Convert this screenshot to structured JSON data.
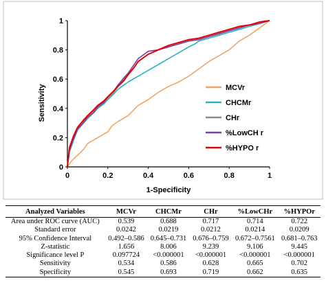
{
  "chart_data": {
    "type": "line",
    "xlabel": "1-Specificity",
    "ylabel": "Sensitivity",
    "xlim": [
      0,
      1
    ],
    "ylim": [
      0,
      1
    ],
    "xticks": [
      "0",
      "0.2",
      "0.4",
      "0.6",
      "0.8",
      "1"
    ],
    "yticks": [
      "0",
      "0.2",
      "0.4",
      "0.6",
      "0.8",
      "1"
    ],
    "grid": false,
    "legend_position": "bottom-right",
    "series": [
      {
        "name": "MCVr",
        "color": "#f4a460",
        "x": [
          0,
          0.02,
          0.05,
          0.08,
          0.1,
          0.15,
          0.2,
          0.22,
          0.25,
          0.3,
          0.35,
          0.4,
          0.45,
          0.5,
          0.55,
          0.6,
          0.65,
          0.7,
          0.75,
          0.8,
          0.85,
          0.9,
          0.95,
          1
        ],
        "y": [
          0,
          0.04,
          0.08,
          0.12,
          0.16,
          0.2,
          0.24,
          0.28,
          0.31,
          0.35,
          0.42,
          0.46,
          0.51,
          0.55,
          0.58,
          0.62,
          0.67,
          0.72,
          0.76,
          0.8,
          0.86,
          0.9,
          0.95,
          1
        ]
      },
      {
        "name": "CHCMr",
        "color": "#2ab0c8",
        "x": [
          0,
          0.01,
          0.03,
          0.05,
          0.08,
          0.1,
          0.13,
          0.15,
          0.18,
          0.2,
          0.23,
          0.25,
          0.28,
          0.3,
          0.35,
          0.4,
          0.45,
          0.5,
          0.55,
          0.6,
          0.63,
          0.65,
          0.7,
          0.75,
          0.8,
          0.85,
          0.9,
          0.95,
          1
        ],
        "y": [
          0,
          0.1,
          0.18,
          0.25,
          0.3,
          0.33,
          0.37,
          0.4,
          0.43,
          0.46,
          0.5,
          0.53,
          0.56,
          0.58,
          0.62,
          0.66,
          0.7,
          0.74,
          0.78,
          0.82,
          0.84,
          0.86,
          0.88,
          0.9,
          0.92,
          0.94,
          0.96,
          0.98,
          1
        ]
      },
      {
        "name": "CHr",
        "color": "#8a8a8a",
        "x": [
          0,
          0.01,
          0.03,
          0.05,
          0.08,
          0.1,
          0.13,
          0.15,
          0.18,
          0.2,
          0.23,
          0.25,
          0.28,
          0.3,
          0.33,
          0.35,
          0.4,
          0.45,
          0.5,
          0.55,
          0.6,
          0.65,
          0.7,
          0.75,
          0.8,
          0.85,
          0.9,
          0.95,
          1
        ],
        "y": [
          0,
          0.12,
          0.2,
          0.26,
          0.31,
          0.35,
          0.38,
          0.41,
          0.44,
          0.47,
          0.51,
          0.55,
          0.6,
          0.63,
          0.68,
          0.72,
          0.77,
          0.8,
          0.82,
          0.84,
          0.86,
          0.87,
          0.89,
          0.91,
          0.93,
          0.95,
          0.97,
          0.98,
          1
        ]
      },
      {
        "name": "%LowCH r",
        "color": "#7b3fa0",
        "x": [
          0,
          0.01,
          0.03,
          0.05,
          0.08,
          0.1,
          0.13,
          0.15,
          0.18,
          0.2,
          0.23,
          0.25,
          0.28,
          0.3,
          0.33,
          0.35,
          0.4,
          0.45,
          0.5,
          0.55,
          0.6,
          0.65,
          0.7,
          0.75,
          0.8,
          0.85,
          0.9,
          0.95,
          1
        ],
        "y": [
          0,
          0.11,
          0.19,
          0.26,
          0.3,
          0.34,
          0.37,
          0.41,
          0.44,
          0.48,
          0.52,
          0.56,
          0.61,
          0.64,
          0.7,
          0.74,
          0.79,
          0.8,
          0.82,
          0.84,
          0.86,
          0.87,
          0.89,
          0.91,
          0.93,
          0.95,
          0.97,
          0.98,
          1
        ]
      },
      {
        "name": "%HYPO r",
        "color": "#e60000",
        "x": [
          0,
          0.01,
          0.03,
          0.05,
          0.08,
          0.1,
          0.13,
          0.15,
          0.18,
          0.2,
          0.23,
          0.25,
          0.28,
          0.3,
          0.33,
          0.35,
          0.4,
          0.45,
          0.5,
          0.55,
          0.6,
          0.65,
          0.7,
          0.75,
          0.8,
          0.85,
          0.9,
          0.95,
          1
        ],
        "y": [
          0,
          0.13,
          0.21,
          0.27,
          0.32,
          0.35,
          0.39,
          0.42,
          0.45,
          0.48,
          0.52,
          0.55,
          0.59,
          0.63,
          0.68,
          0.72,
          0.77,
          0.8,
          0.83,
          0.85,
          0.87,
          0.88,
          0.9,
          0.92,
          0.94,
          0.96,
          0.97,
          0.99,
          1
        ]
      }
    ]
  },
  "table": {
    "headers": [
      "Analyzed Variables",
      "MCVr",
      "CHCMr",
      "CHr",
      "%LowCHr",
      "%HYPOr"
    ],
    "rows": [
      [
        "Area under ROC curve (AUC)",
        "0.539",
        "0.688",
        "0.717",
        "0.714",
        "0.722"
      ],
      [
        "Standard error",
        "0.0242",
        "0.0219",
        "0.0212",
        "0.0214",
        "0.0209"
      ],
      [
        "95% Confidence Interval",
        "0.492–0.586",
        "0.645–0.731",
        "0.676–0.759",
        "0.672–0.7561",
        "0.681–0.763"
      ],
      [
        "Z-statistic",
        "1.656",
        "8.006",
        "9.239",
        "9.106",
        "9.445"
      ],
      [
        "Significance level P",
        "0.097724",
        "<0.000001",
        "<0.000001",
        "<0.000001",
        "<0.000001"
      ],
      [
        "Sensitivity",
        "0.534",
        "0.586",
        "0.628",
        "0.665",
        "0.702"
      ],
      [
        "Specificity",
        "0.545",
        "0.693",
        "0.719",
        "0.662",
        "0.635"
      ]
    ]
  }
}
